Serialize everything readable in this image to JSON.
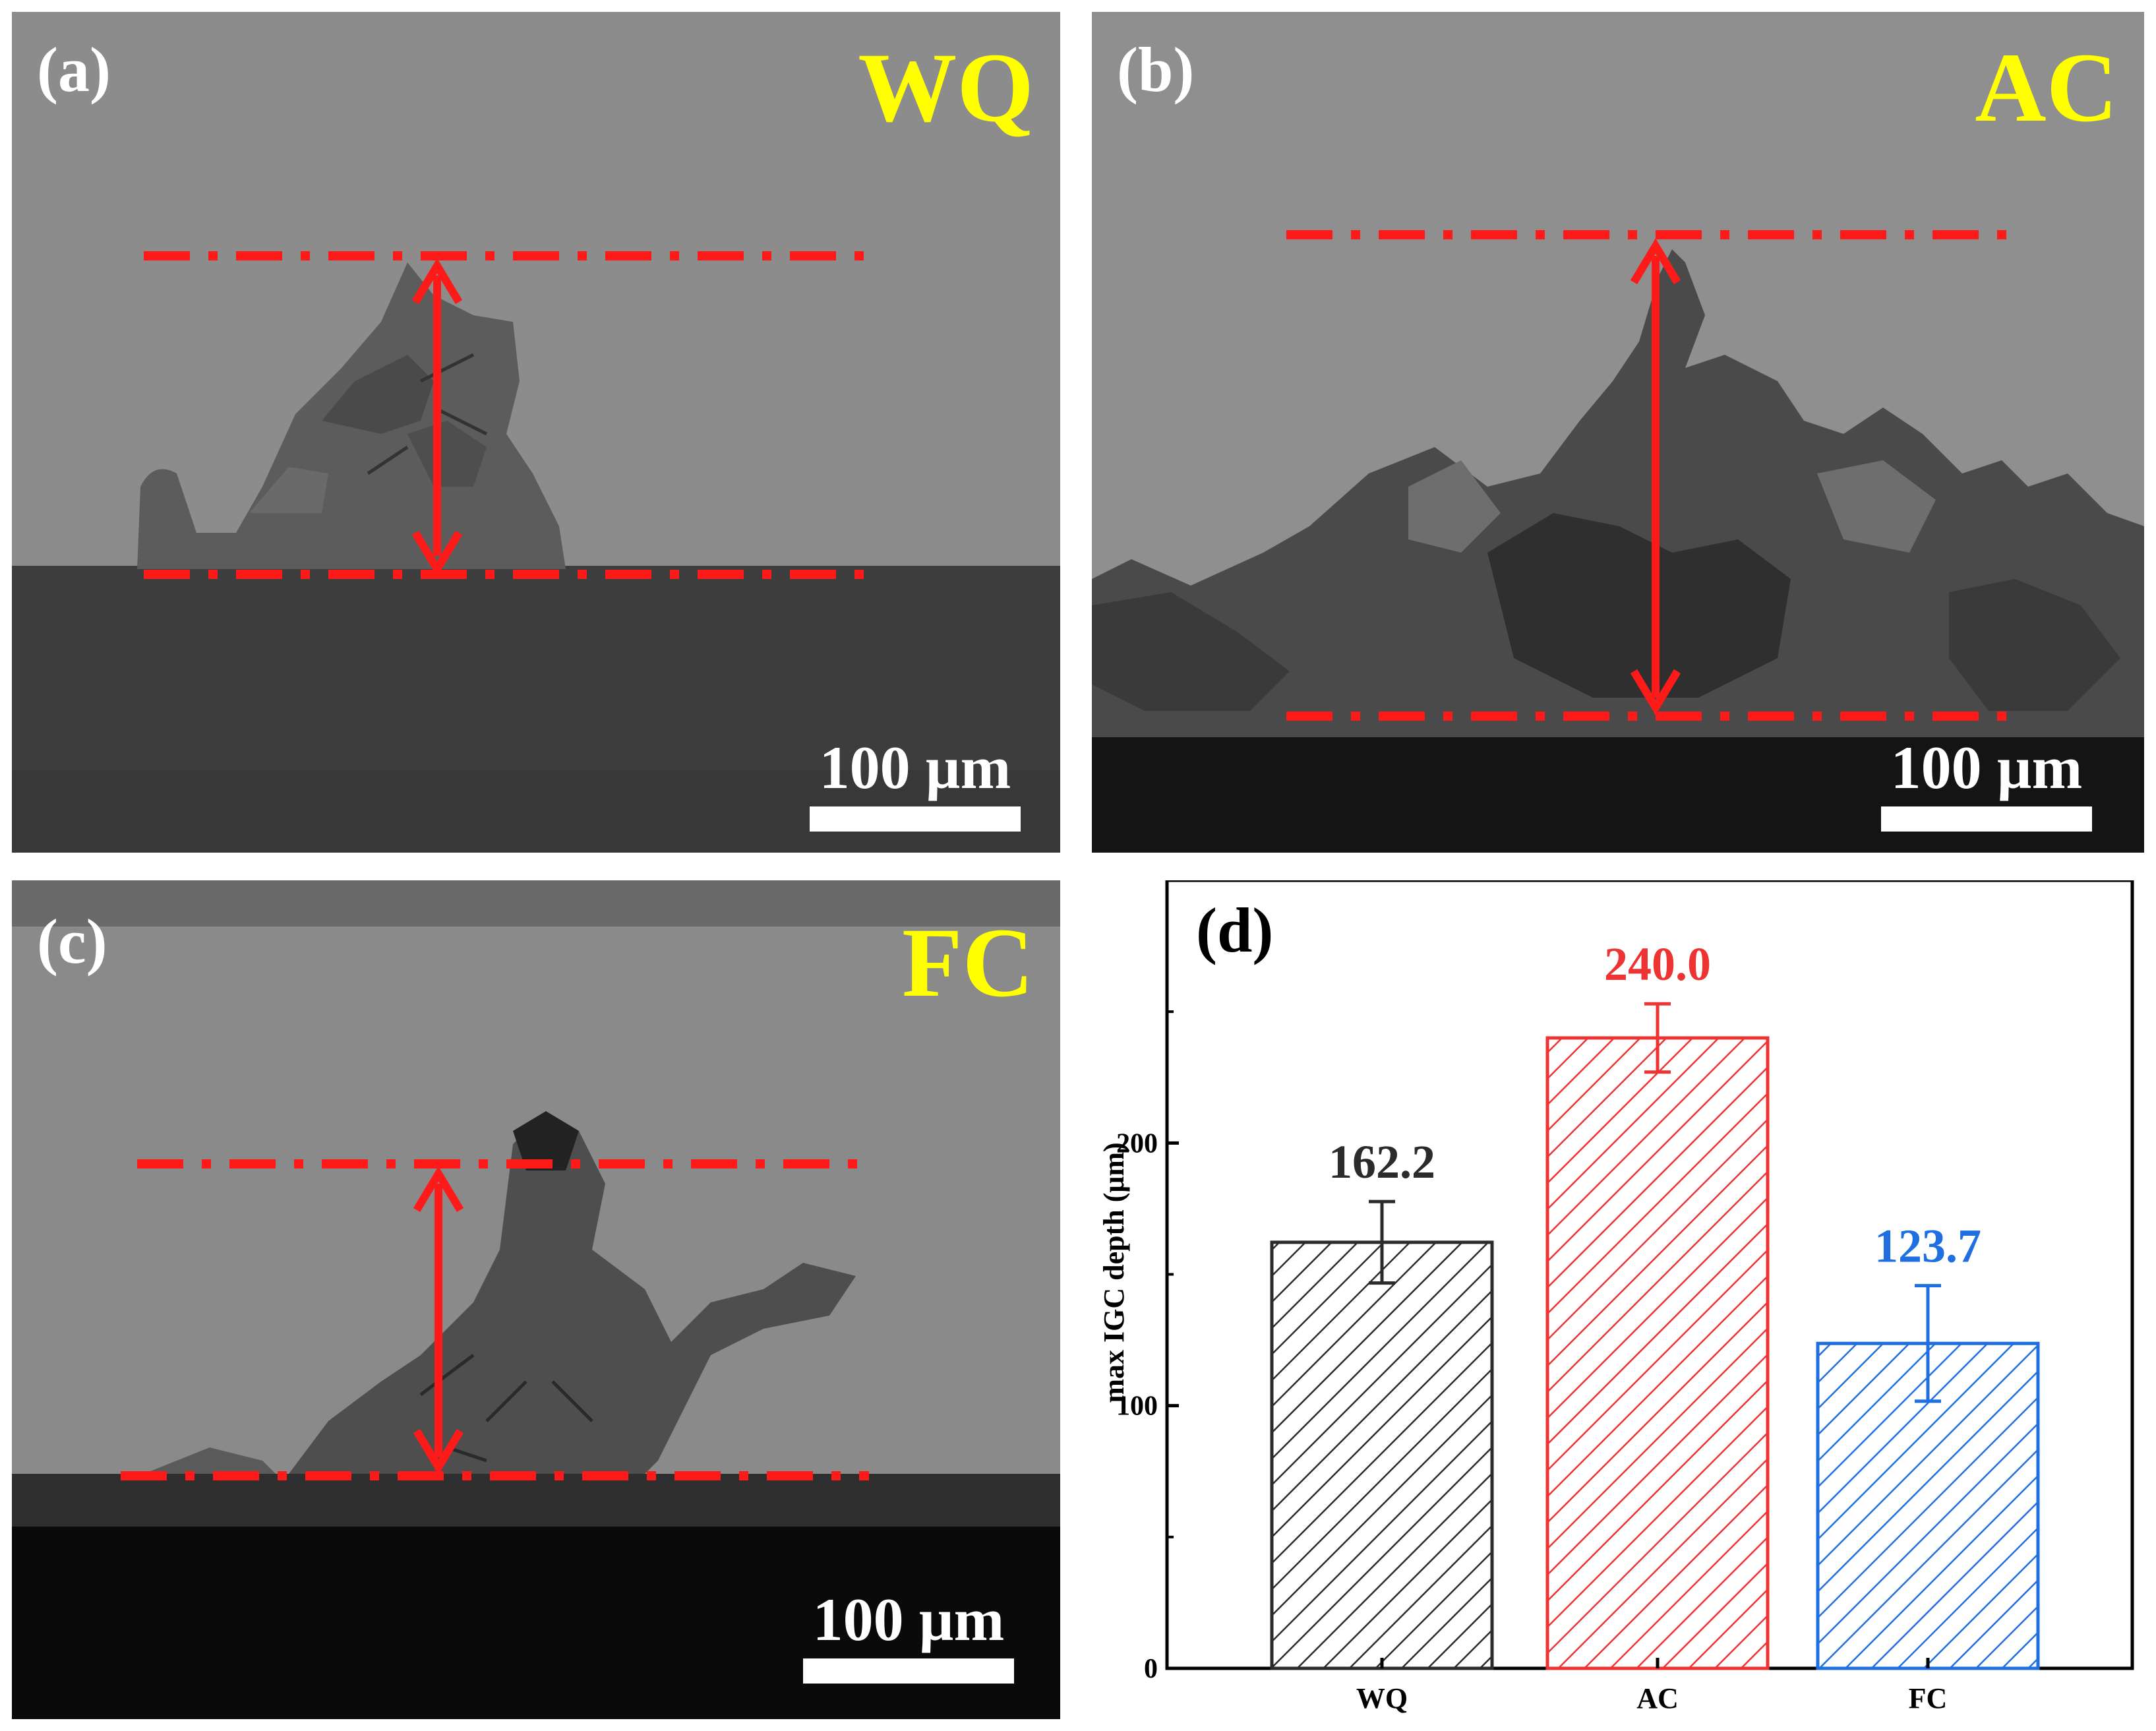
{
  "panels": [
    {
      "label": "(a)",
      "tag": "WQ",
      "scale": "100 µm"
    },
    {
      "label": "(b)",
      "tag": "AC",
      "scale": "100 µm"
    },
    {
      "label": "(c)",
      "tag": "FC",
      "scale": "100 µm"
    }
  ],
  "chart_panel_label": "(d)",
  "colors": {
    "tag_yellow": "#ffff00",
    "marker_red": "#ff1a1a",
    "wq": "#2b2b2b",
    "ac": "#ee3333",
    "fc": "#1f6fe0"
  },
  "chart_data": {
    "type": "bar",
    "title": "",
    "xlabel": "",
    "ylabel": "max IGC depth (μm)",
    "categories": [
      "WQ",
      "AC",
      "FC"
    ],
    "values": [
      162.2,
      240.0,
      123.7
    ],
    "value_labels": [
      "162.2",
      "240.0",
      "123.7"
    ],
    "error_bars": [
      15.5,
      13.0,
      22.0
    ],
    "ylim": [
      0,
      300
    ],
    "yticks": [
      0,
      100,
      200
    ],
    "ytick_labels": [
      "0",
      "100",
      "200"
    ],
    "bar_fill": "hatched",
    "bar_colors": [
      "#2b2b2b",
      "#ee3333",
      "#1f6fe0"
    ]
  }
}
